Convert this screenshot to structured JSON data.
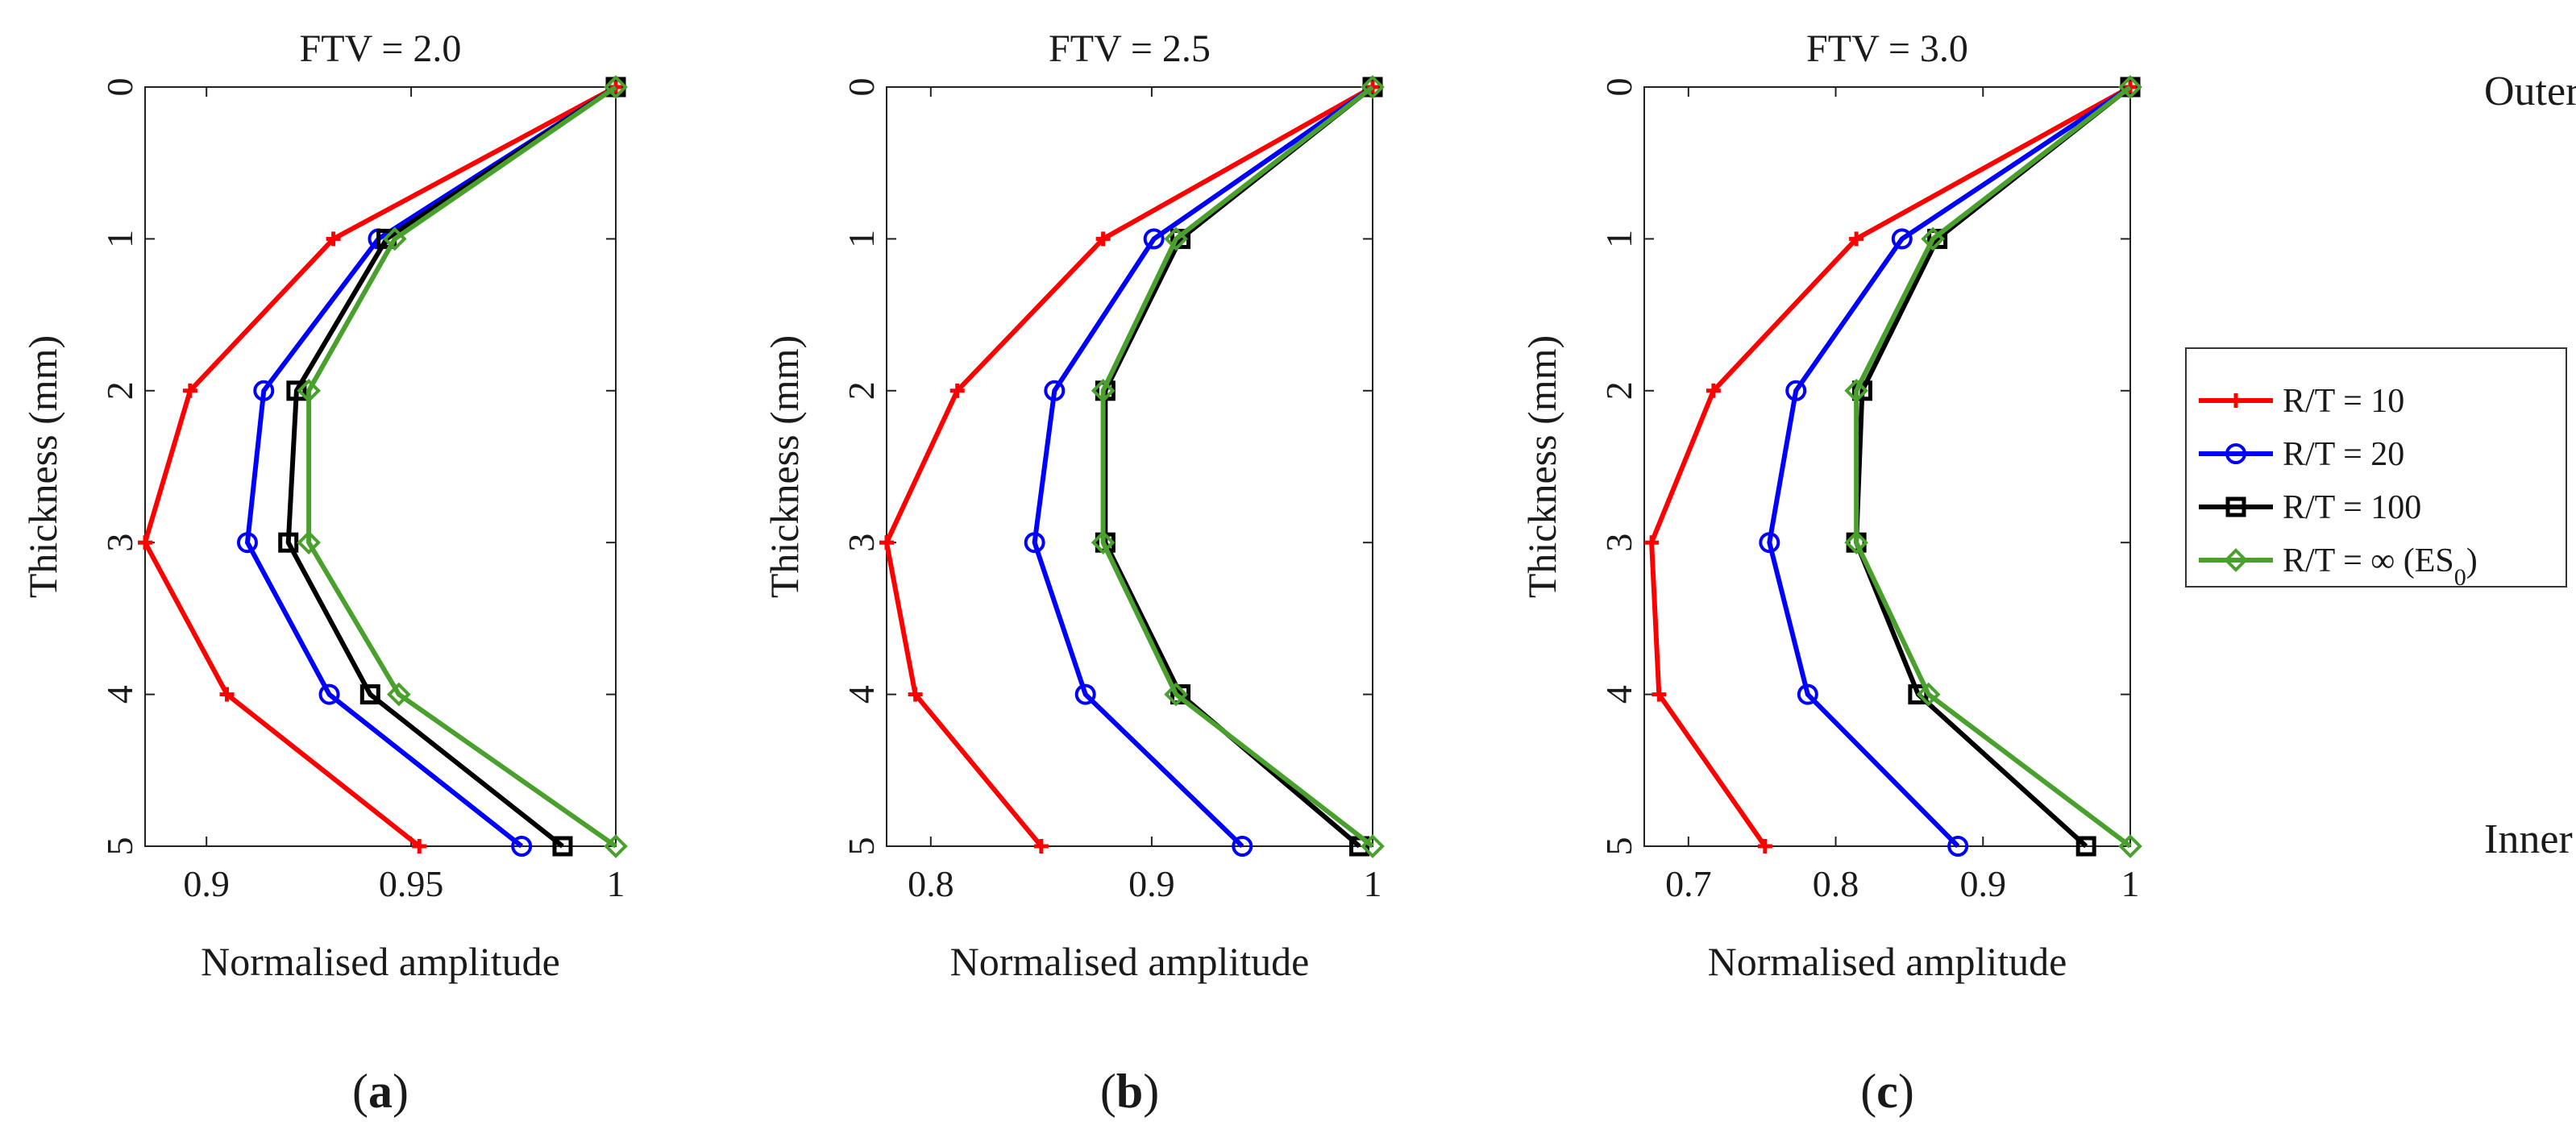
{
  "side_labels": {
    "top": "Outer side",
    "bottom": "Inner side"
  },
  "legend_entries": [
    {
      "label": "R/T = 10"
    },
    {
      "label": "R/T = 20"
    },
    {
      "label": "R/T = 100"
    },
    {
      "label": "R/T = ∞ (ES",
      "sub": "0",
      "suffix": ")"
    }
  ],
  "chart_data": [
    {
      "type": "line",
      "title": "FTV = 2.0",
      "xlabel": "Normalised amplitude",
      "ylabel": "Thickness (mm)",
      "sublabel": "(a)",
      "xlim": [
        0.885,
        1.0
      ],
      "ylim": [
        0,
        5
      ],
      "y_reversed": true,
      "xticks": [
        0.9,
        0.95,
        1
      ],
      "xtick_labels": [
        "0.9",
        "0.95",
        "1"
      ],
      "yticks": [
        0,
        1,
        2,
        3,
        4,
        5
      ],
      "ytick_labels": [
        "0",
        "1",
        "2",
        "3",
        "4",
        "5"
      ],
      "y": [
        0,
        1,
        2,
        3,
        4,
        5
      ],
      "series": [
        {
          "name": "R/T = 10",
          "marker": "plus",
          "color": "#ff0000",
          "values": [
            1.0,
            0.931,
            0.896,
            0.885,
            0.905,
            0.952
          ]
        },
        {
          "name": "R/T = 20",
          "marker": "circle",
          "color": "#0000ff",
          "values": [
            1.0,
            0.942,
            0.914,
            0.91,
            0.93,
            0.977
          ]
        },
        {
          "name": "R/T = 100",
          "marker": "square",
          "color": "#000000",
          "values": [
            1.0,
            0.944,
            0.922,
            0.92,
            0.94,
            0.987
          ]
        },
        {
          "name": "R/T = ∞ (ES0)",
          "marker": "diamond",
          "color": "#4aa02c",
          "values": [
            1.0,
            0.946,
            0.925,
            0.925,
            0.947,
            1.0
          ]
        }
      ]
    },
    {
      "type": "line",
      "title": "FTV = 2.5",
      "xlabel": "Normalised amplitude",
      "ylabel": "Thickness (mm)",
      "sublabel": "(b)",
      "xlim": [
        0.78,
        1.0
      ],
      "ylim": [
        0,
        5
      ],
      "y_reversed": true,
      "xticks": [
        0.8,
        0.9,
        1
      ],
      "xtick_labels": [
        "0.8",
        "0.9",
        "1"
      ],
      "yticks": [
        0,
        1,
        2,
        3,
        4,
        5
      ],
      "ytick_labels": [
        "0",
        "1",
        "2",
        "3",
        "4",
        "5"
      ],
      "y": [
        0,
        1,
        2,
        3,
        4,
        5
      ],
      "series": [
        {
          "name": "R/T = 10",
          "marker": "plus",
          "color": "#ff0000",
          "values": [
            1.0,
            0.878,
            0.812,
            0.78,
            0.793,
            0.85
          ]
        },
        {
          "name": "R/T = 20",
          "marker": "circle",
          "color": "#0000ff",
          "values": [
            1.0,
            0.901,
            0.856,
            0.847,
            0.87,
            0.941
          ]
        },
        {
          "name": "R/T = 100",
          "marker": "square",
          "color": "#000000",
          "values": [
            1.0,
            0.913,
            0.879,
            0.879,
            0.913,
            0.994
          ]
        },
        {
          "name": "R/T = ∞ (ES0)",
          "marker": "diamond",
          "color": "#4aa02c",
          "values": [
            1.0,
            0.911,
            0.878,
            0.878,
            0.911,
            1.0
          ]
        }
      ]
    },
    {
      "type": "line",
      "title": "FTV = 3.0",
      "xlabel": "Normalised amplitude",
      "ylabel": "Thickness (mm)",
      "sublabel": "(c)",
      "xlim": [
        0.67,
        1.0
      ],
      "ylim": [
        0,
        5
      ],
      "y_reversed": true,
      "xticks": [
        0.7,
        0.8,
        0.9,
        1
      ],
      "xtick_labels": [
        "0.7",
        "0.8",
        "0.9",
        "1"
      ],
      "yticks": [
        0,
        1,
        2,
        3,
        4,
        5
      ],
      "ytick_labels": [
        "0",
        "1",
        "2",
        "3",
        "4",
        "5"
      ],
      "y": [
        0,
        1,
        2,
        3,
        4,
        5
      ],
      "series": [
        {
          "name": "R/T = 10",
          "marker": "plus",
          "color": "#ff0000",
          "values": [
            1.0,
            0.814,
            0.717,
            0.675,
            0.68,
            0.752
          ]
        },
        {
          "name": "R/T = 20",
          "marker": "circle",
          "color": "#0000ff",
          "values": [
            1.0,
            0.845,
            0.773,
            0.755,
            0.781,
            0.883
          ]
        },
        {
          "name": "R/T = 100",
          "marker": "square",
          "color": "#000000",
          "values": [
            1.0,
            0.869,
            0.818,
            0.814,
            0.856,
            0.97
          ]
        },
        {
          "name": "R/T = ∞ (ES0)",
          "marker": "diamond",
          "color": "#4aa02c",
          "values": [
            1.0,
            0.866,
            0.814,
            0.814,
            0.863,
            1.0
          ]
        }
      ]
    }
  ]
}
